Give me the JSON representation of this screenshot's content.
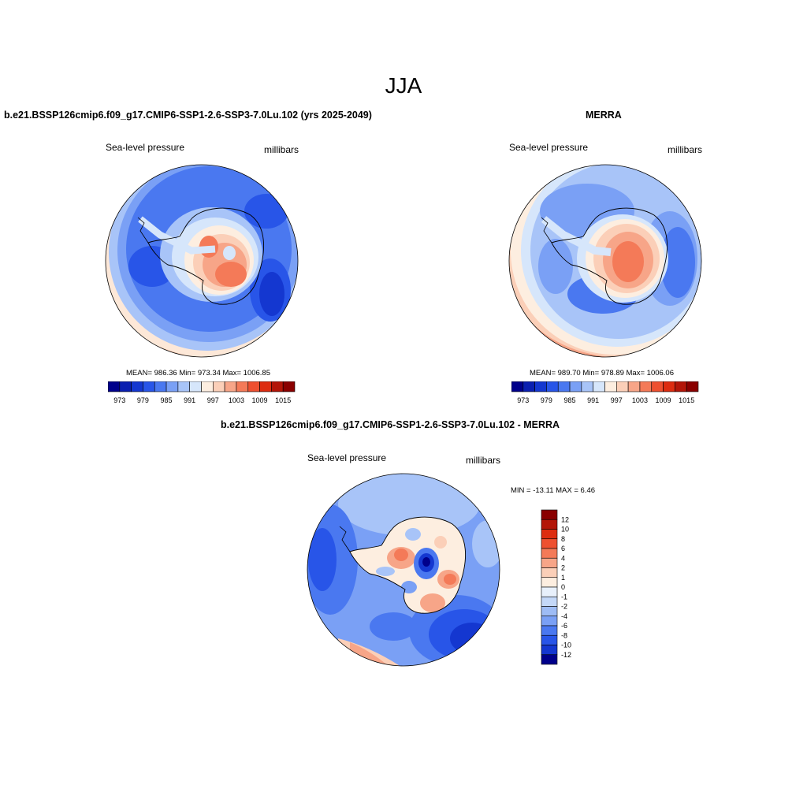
{
  "season": "JJA",
  "panels": {
    "model": {
      "title": "b.e21.BSSP126cmip6.f09_g17.CMIP6-SSP1-2.6-SSP3-7.0Lu.102 (yrs 2025-2049)",
      "variable": "Sea-level pressure",
      "units": "millibars",
      "stats": "MEAN= 986.36  Min= 973.34  Max= 1006.85"
    },
    "obs": {
      "title": "MERRA",
      "variable": "Sea-level pressure",
      "units": "millibars",
      "stats": "MEAN= 989.70  Min= 978.89  Max= 1006.06"
    },
    "diff": {
      "title": "b.e21.BSSP126cmip6.f09_g17.CMIP6-SSP1-2.6-SSP3-7.0Lu.102 - MERRA",
      "variable": "Sea-level pressure",
      "units": "millibars",
      "stats": "MIN = -13.11 MAX =   6.46"
    }
  },
  "colorbar_abs": {
    "colors": [
      "#00008b",
      "#0a1fb0",
      "#1437d0",
      "#2855e8",
      "#4a78f0",
      "#7aa0f5",
      "#a8c4f8",
      "#d6e6fb",
      "#fdeee0",
      "#fbcfb8",
      "#f7a588",
      "#f47a58",
      "#ee5030",
      "#dd2c10",
      "#b31508",
      "#8a0000"
    ],
    "tick_labels": [
      "973",
      "979",
      "985",
      "991",
      "997",
      "1003",
      "1009",
      "1015"
    ]
  },
  "colorbar_diff": {
    "colors": [
      "#8a0000",
      "#b31508",
      "#dd2c10",
      "#ee5030",
      "#f47a58",
      "#f7a588",
      "#fbcfb8",
      "#fdeee0",
      "#e8f0fb",
      "#c4d8f8",
      "#9ebcf5",
      "#7aa0f5",
      "#4a78f0",
      "#2855e8",
      "#1437d0",
      "#00008b"
    ],
    "tick_labels": [
      "12",
      "10",
      "8",
      "6",
      "4",
      "2",
      "1",
      "0",
      "-1",
      "-2",
      "-4",
      "-6",
      "-8",
      "-10",
      "-12"
    ]
  }
}
